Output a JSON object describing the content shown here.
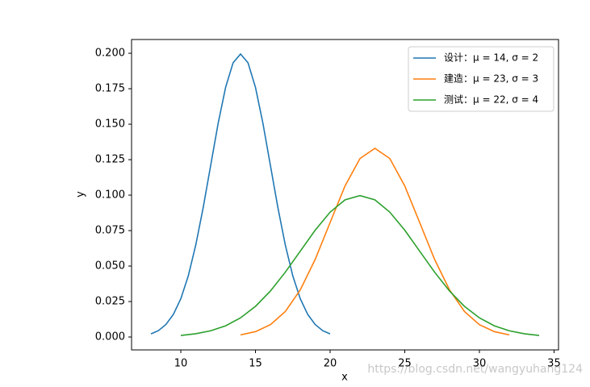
{
  "chart_data": {
    "type": "line",
    "xlabel": "x",
    "ylabel": "y",
    "xlim": [
      6.7,
      35.3
    ],
    "ylim": [
      -0.0091,
      0.2097
    ],
    "xticks": [
      10,
      15,
      20,
      25,
      30,
      35
    ],
    "yticks": [
      {
        "value": 0,
        "label": "0.000"
      },
      {
        "value": 0.025,
        "label": "0.025"
      },
      {
        "value": 0.05,
        "label": "0.050"
      },
      {
        "value": 0.075,
        "label": "0.075"
      },
      {
        "value": 0.1,
        "label": "0.100"
      },
      {
        "value": 0.125,
        "label": "0.125"
      },
      {
        "value": 0.15,
        "label": "0.150"
      },
      {
        "value": 0.175,
        "label": "0.175"
      },
      {
        "value": 0.2,
        "label": "0.200"
      }
    ],
    "legend": "upper right",
    "watermark": "https://blog.csdn.net/wangyuhang124",
    "series": [
      {
        "name": "设计：μ = 14, σ = 2",
        "color": "#1f77b4",
        "x": [
          8,
          8.5,
          9,
          9.5,
          10,
          10.5,
          11,
          11.5,
          12,
          12.5,
          13,
          13.5,
          14,
          14.5,
          15,
          15.5,
          16,
          16.5,
          17,
          17.5,
          18,
          18.5,
          19,
          19.5,
          20
        ],
        "values": [
          0.0022,
          0.0045,
          0.0088,
          0.0159,
          0.027,
          0.0431,
          0.0648,
          0.0913,
          0.121,
          0.1506,
          0.176,
          0.1933,
          0.1995,
          0.1933,
          0.176,
          0.1506,
          0.121,
          0.0913,
          0.0648,
          0.0431,
          0.027,
          0.0159,
          0.0088,
          0.0045,
          0.0022
        ]
      },
      {
        "name": "建造：μ = 23, σ = 3",
        "color": "#ff7f0e",
        "x": [
          14,
          15,
          16,
          17,
          18,
          19,
          20,
          21,
          22,
          23,
          24,
          25,
          26,
          27,
          28,
          29,
          30,
          31,
          32
        ],
        "values": [
          0.0015,
          0.0038,
          0.0087,
          0.018,
          0.0332,
          0.0547,
          0.0807,
          0.1065,
          0.1258,
          0.133,
          0.1258,
          0.1065,
          0.0807,
          0.0547,
          0.0332,
          0.018,
          0.0087,
          0.0038,
          0.0015
        ]
      },
      {
        "name": "测试：μ = 22, σ = 4",
        "color": "#2ca02c",
        "x": [
          10,
          11,
          12,
          13,
          14,
          15,
          16,
          17,
          18,
          19,
          20,
          21,
          22,
          23,
          24,
          25,
          26,
          27,
          28,
          29,
          30,
          31,
          32,
          33,
          34
        ],
        "values": [
          0.0011,
          0.0023,
          0.0044,
          0.0079,
          0.0135,
          0.0216,
          0.0324,
          0.0457,
          0.0605,
          0.0753,
          0.088,
          0.0967,
          0.0997,
          0.0967,
          0.088,
          0.0753,
          0.0605,
          0.0457,
          0.0324,
          0.0216,
          0.0135,
          0.0079,
          0.0044,
          0.0023,
          0.0011
        ]
      }
    ]
  }
}
